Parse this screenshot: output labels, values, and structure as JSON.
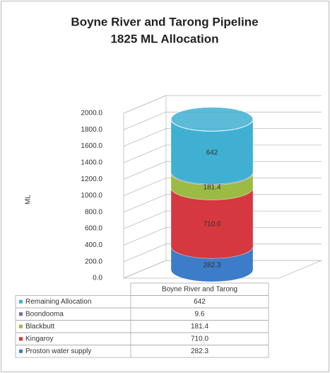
{
  "chart_data": {
    "type": "cylinder-stacked",
    "title": "Boyne River and Tarong Pipeline",
    "subtitle": "1825 ML Allocation",
    "y_label": "ML",
    "categories": [
      "Boyne River and Tarong"
    ],
    "series": [
      {
        "name": "Proston water supply",
        "color": "#3d7cc9",
        "values": [
          282.3
        ]
      },
      {
        "name": "Kingaroy",
        "color": "#d6383f",
        "values": [
          710
        ],
        "value_labels": [
          "710.0"
        ]
      },
      {
        "name": "Blackbutt",
        "color": "#9bbb44",
        "values": [
          181.4
        ]
      },
      {
        "name": "Boondooma",
        "color": "#8064a2",
        "values": [
          9.6
        ]
      },
      {
        "name": "Remaining Allocation",
        "color": "#3fb0d2",
        "values": [
          642
        ]
      }
    ],
    "ylim": [
      0,
      2000
    ],
    "yticks": [
      {
        "value": 0,
        "label": "0.0"
      },
      {
        "value": 200,
        "label": "200.0"
      },
      {
        "value": 400,
        "label": "400.0"
      },
      {
        "value": 600,
        "label": "600.0"
      },
      {
        "value": 800,
        "label": "800.0"
      },
      {
        "value": 1000,
        "label": "1000.0"
      },
      {
        "value": 1200,
        "label": "1200.0"
      },
      {
        "value": 1400,
        "label": "1400.0"
      },
      {
        "value": 1600,
        "label": "1600.0"
      },
      {
        "value": 1800,
        "label": "1800.0"
      },
      {
        "value": 2000,
        "label": "2000.0"
      }
    ],
    "grid": true
  }
}
